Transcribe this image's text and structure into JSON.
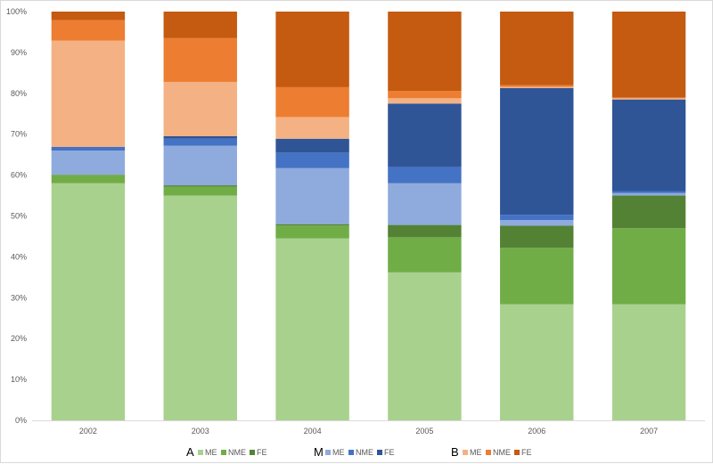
{
  "chart_data": {
    "type": "bar",
    "stacked": true,
    "percent": true,
    "categories": [
      "2002",
      "2003",
      "2004",
      "2005",
      "2006",
      "2007"
    ],
    "ylim": [
      0,
      100
    ],
    "yticks": [
      "0%",
      "10%",
      "20%",
      "30%",
      "40%",
      "50%",
      "60%",
      "70%",
      "80%",
      "90%",
      "100%"
    ],
    "grid": false,
    "legend_position": "bottom",
    "legend_groups": [
      {
        "label": "A",
        "series": [
          0,
          1,
          2
        ]
      },
      {
        "label": "M",
        "series": [
          3,
          4,
          5
        ]
      },
      {
        "label": "B",
        "series": [
          6,
          7,
          8
        ]
      }
    ],
    "series": [
      {
        "name": "ME",
        "group": "A",
        "color": "#a9d18e",
        "values": [
          58.0,
          55.0,
          44.5,
          36.2,
          28.4,
          28.4
        ]
      },
      {
        "name": "NME",
        "group": "A",
        "color": "#70ad47",
        "values": [
          2.0,
          2.2,
          3.2,
          8.6,
          13.8,
          18.6
        ]
      },
      {
        "name": "FE",
        "group": "A",
        "color": "#548235",
        "values": [
          0.1,
          0.3,
          0.3,
          3.0,
          5.4,
          8.0
        ]
      },
      {
        "name": "ME",
        "group": "M",
        "color": "#8faadc",
        "values": [
          5.9,
          9.7,
          13.7,
          10.2,
          1.4,
          0.6
        ]
      },
      {
        "name": "NME",
        "group": "M",
        "color": "#4472c4",
        "values": [
          0.9,
          1.7,
          3.8,
          4.0,
          1.3,
          0.5
        ]
      },
      {
        "name": "FE",
        "group": "M",
        "color": "#2f5597",
        "values": [
          0.0,
          0.6,
          3.4,
          15.5,
          31.0,
          22.4
        ]
      },
      {
        "name": "ME",
        "group": "B",
        "color": "#f4b183",
        "values": [
          26.0,
          13.3,
          5.3,
          1.3,
          0.3,
          0.3
        ]
      },
      {
        "name": "NME",
        "group": "B",
        "color": "#ed7d31",
        "values": [
          5.0,
          10.7,
          7.3,
          1.8,
          0.4,
          0.2
        ]
      },
      {
        "name": "FE",
        "group": "B",
        "color": "#c55a11",
        "values": [
          2.1,
          6.5,
          18.5,
          19.4,
          18.0,
          21.0
        ]
      }
    ]
  }
}
